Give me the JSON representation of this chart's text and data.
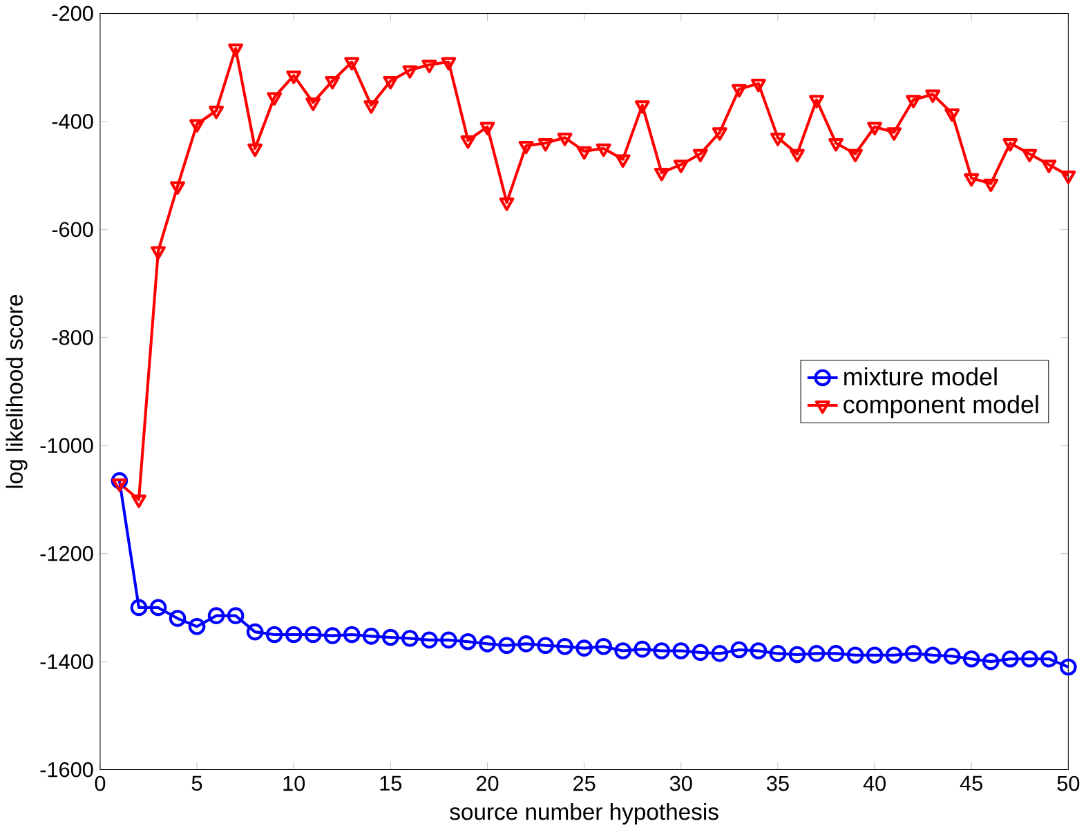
{
  "chart_data": {
    "type": "line",
    "xlabel": "source number hypothesis",
    "ylabel": "log likelihood score",
    "x": [
      1,
      2,
      3,
      4,
      5,
      6,
      7,
      8,
      9,
      10,
      11,
      12,
      13,
      14,
      15,
      16,
      17,
      18,
      19,
      20,
      21,
      22,
      23,
      24,
      25,
      26,
      27,
      28,
      29,
      30,
      31,
      32,
      33,
      34,
      35,
      36,
      37,
      38,
      39,
      40,
      41,
      42,
      43,
      44,
      45,
      46,
      47,
      48,
      49,
      50
    ],
    "series": [
      {
        "name": "mixture model",
        "color": "#0000ff",
        "marker": "circle",
        "values": [
          -1065,
          -1300,
          -1300,
          -1320,
          -1335,
          -1315,
          -1315,
          -1345,
          -1350,
          -1350,
          -1350,
          -1352,
          -1350,
          -1353,
          -1355,
          -1357,
          -1360,
          -1360,
          -1363,
          -1367,
          -1370,
          -1367,
          -1370,
          -1372,
          -1375,
          -1372,
          -1380,
          -1377,
          -1380,
          -1380,
          -1383,
          -1385,
          -1378,
          -1380,
          -1385,
          -1387,
          -1385,
          -1385,
          -1388,
          -1388,
          -1388,
          -1385,
          -1388,
          -1390,
          -1395,
          -1400,
          -1395,
          -1395,
          -1395,
          -1410
        ]
      },
      {
        "name": "component model",
        "color": "#ff0000",
        "marker": "triangle",
        "values": [
          -1070,
          -1100,
          -640,
          -520,
          -405,
          -380,
          -265,
          -450,
          -355,
          -315,
          -365,
          -325,
          -290,
          -370,
          -325,
          -305,
          -295,
          -290,
          -435,
          -410,
          -550,
          -445,
          -440,
          -430,
          -455,
          -450,
          -470,
          -370,
          -495,
          -480,
          -460,
          -420,
          -340,
          -330,
          -430,
          -460,
          -360,
          -440,
          -460,
          -410,
          -420,
          -360,
          -350,
          -385,
          -505,
          -515,
          -440,
          -460,
          -480,
          -500
        ]
      }
    ],
    "xlim": [
      0,
      50
    ],
    "ylim": [
      -1600,
      -200
    ],
    "xticks": [
      0,
      5,
      10,
      15,
      20,
      25,
      30,
      35,
      40,
      45,
      50
    ],
    "yticks": [
      -1600,
      -1400,
      -1200,
      -1000,
      -800,
      -600,
      -400,
      -200
    ],
    "legend": "right",
    "line_style": "solid"
  }
}
